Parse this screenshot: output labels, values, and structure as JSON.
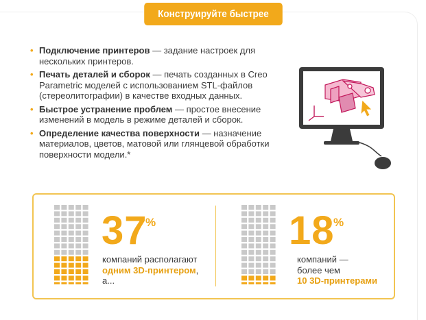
{
  "title": "Конструируйте быстрее",
  "features": [
    {
      "bullet": "•",
      "bold": "Подключение принтеров",
      "dash": " — ",
      "text": "задание настроек для нескольких принтеров."
    },
    {
      "bullet": "•",
      "bold": "Печать деталей и сборок",
      "dash": " — ",
      "text": "печать созданных в Creo Parametric моделей с использованием STL-файлов (стереолитографии) в качестве входных данных."
    },
    {
      "bullet": "•",
      "bold": "Быстрое устранение проблем",
      "dash": " — ",
      "text": "простое внесение изменений в модель в режиме деталей и сборок."
    },
    {
      "bullet": "•",
      "bold": "Определение качества поверхности",
      "dash": " — ",
      "text": "назначение материалов, цветов, матовой или глянцевой обработки поверхности модели.*"
    }
  ],
  "stats": [
    {
      "number": "37",
      "percent": "%",
      "line1": "компаний располагают",
      "highlight": "одним 3D-принтером",
      "after_highlight": ",",
      "line3": "а..."
    },
    {
      "number": "18",
      "percent": "%",
      "line1": "компаний —",
      "line2": "более чем",
      "highlight": "10 3D-принтерами"
    }
  ],
  "colors": {
    "accent": "#f2a91b",
    "box_border": "#f2c451",
    "building_gray": "#c9c9c9",
    "monitor_dark": "#3b3b3b"
  },
  "icons": {
    "monitor": "computer-monitor-cad-icon",
    "mouse": "mouse-icon",
    "building": "building-icon"
  }
}
